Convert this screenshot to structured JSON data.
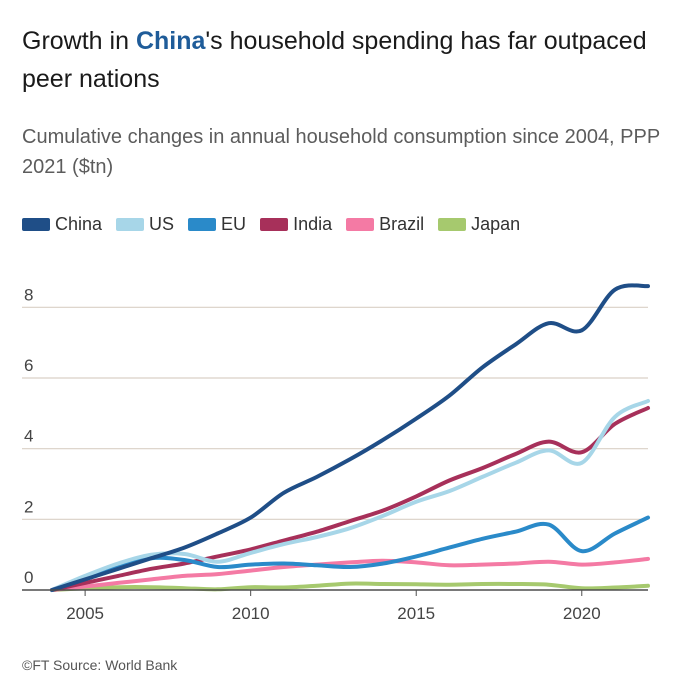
{
  "title": {
    "before": "Growth in ",
    "highlight": "China",
    "after": "'s household spending has far outpaced peer nations"
  },
  "subtitle": "Cumulative changes in annual household consumption since 2004, PPP 2021 ($tn)",
  "source": "©FT Source: World Bank",
  "colors": {
    "China": "#1f4e87",
    "US": "#a7d6e8",
    "EU": "#2a8ac9",
    "India": "#a7305a",
    "Brazil": "#f47aa4",
    "Japan": "#a6c96e",
    "grid": "#d9d0c6",
    "zero": "#4d4d4d"
  },
  "chart_data": {
    "type": "line",
    "title": "Growth in China's household spending has far outpaced peer nations",
    "ylabel": "Cumulative changes in annual household consumption since 2004, PPP 2021 ($tn)",
    "xlabel": "",
    "xlim": [
      2004,
      2022
    ],
    "ylim": [
      0,
      9
    ],
    "xticks": [
      2005,
      2010,
      2015,
      2020
    ],
    "yticks": [
      0,
      2,
      4,
      6,
      8
    ],
    "legend": "top",
    "series": [
      {
        "name": "China",
        "x": [
          2004,
          2005,
          2006,
          2007,
          2008,
          2009,
          2010,
          2011,
          2012,
          2013,
          2014,
          2015,
          2016,
          2017,
          2018,
          2019,
          2020,
          2021,
          2022
        ],
        "values": [
          0,
          0.3,
          0.6,
          0.9,
          1.2,
          1.6,
          2.05,
          2.75,
          3.2,
          3.7,
          4.25,
          4.85,
          5.5,
          6.3,
          6.95,
          7.55,
          7.35,
          8.5,
          8.6
        ]
      },
      {
        "name": "US",
        "x": [
          2004,
          2005,
          2006,
          2007,
          2008,
          2009,
          2010,
          2011,
          2012,
          2013,
          2014,
          2015,
          2016,
          2017,
          2018,
          2019,
          2020,
          2021,
          2022
        ],
        "values": [
          0,
          0.4,
          0.75,
          1.0,
          1.02,
          0.8,
          1.05,
          1.3,
          1.5,
          1.75,
          2.1,
          2.5,
          2.8,
          3.2,
          3.6,
          3.95,
          3.6,
          4.9,
          5.35
        ]
      },
      {
        "name": "EU",
        "x": [
          2004,
          2005,
          2006,
          2007,
          2008,
          2009,
          2010,
          2011,
          2012,
          2013,
          2014,
          2015,
          2016,
          2017,
          2018,
          2019,
          2020,
          2021,
          2022
        ],
        "values": [
          0,
          0.35,
          0.65,
          0.9,
          0.85,
          0.65,
          0.72,
          0.75,
          0.7,
          0.65,
          0.75,
          0.95,
          1.2,
          1.45,
          1.65,
          1.85,
          1.1,
          1.6,
          2.05
        ]
      },
      {
        "name": "India",
        "x": [
          2004,
          2005,
          2006,
          2007,
          2008,
          2009,
          2010,
          2011,
          2012,
          2013,
          2014,
          2015,
          2016,
          2017,
          2018,
          2019,
          2020,
          2021,
          2022
        ],
        "values": [
          0,
          0.2,
          0.4,
          0.6,
          0.75,
          0.95,
          1.15,
          1.4,
          1.65,
          1.95,
          2.25,
          2.65,
          3.1,
          3.45,
          3.85,
          4.2,
          3.9,
          4.7,
          5.15
        ]
      },
      {
        "name": "Brazil",
        "x": [
          2004,
          2005,
          2006,
          2007,
          2008,
          2009,
          2010,
          2011,
          2012,
          2013,
          2014,
          2015,
          2016,
          2017,
          2018,
          2019,
          2020,
          2021,
          2022
        ],
        "values": [
          0,
          0.1,
          0.2,
          0.3,
          0.4,
          0.45,
          0.55,
          0.65,
          0.72,
          0.78,
          0.83,
          0.78,
          0.7,
          0.72,
          0.75,
          0.8,
          0.72,
          0.78,
          0.88
        ]
      },
      {
        "name": "Japan",
        "x": [
          2004,
          2005,
          2006,
          2007,
          2008,
          2009,
          2010,
          2011,
          2012,
          2013,
          2014,
          2015,
          2016,
          2017,
          2018,
          2019,
          2020,
          2021,
          2022
        ],
        "values": [
          0,
          0.05,
          0.08,
          0.08,
          0.05,
          0.02,
          0.08,
          0.07,
          0.12,
          0.18,
          0.17,
          0.16,
          0.15,
          0.17,
          0.17,
          0.15,
          0.05,
          0.07,
          0.12
        ]
      }
    ]
  }
}
